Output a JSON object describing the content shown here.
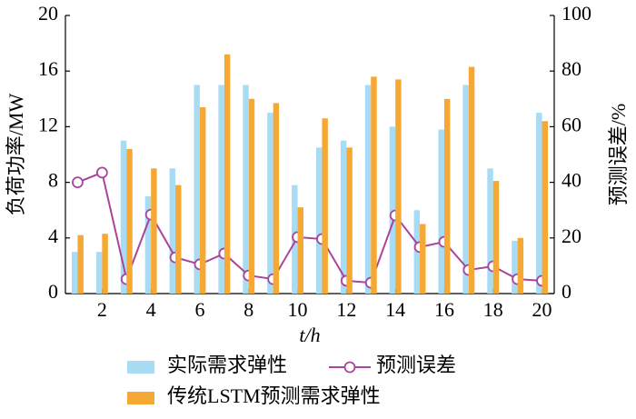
{
  "chart_data": {
    "type": "bar",
    "x": [
      1,
      2,
      3,
      4,
      5,
      6,
      7,
      8,
      9,
      10,
      11,
      12,
      13,
      14,
      15,
      16,
      17,
      18,
      19,
      20
    ],
    "xlim": [
      0.5,
      20.5
    ],
    "xticks": [
      2,
      4,
      6,
      8,
      10,
      12,
      14,
      16,
      18,
      20
    ],
    "ylim": [
      0,
      20
    ],
    "yticks": [
      0,
      4,
      8,
      12,
      16,
      20
    ],
    "y2lim": [
      0,
      100
    ],
    "y2ticks": [
      0,
      20,
      40,
      60,
      80,
      100
    ],
    "xlabel": "t/h",
    "ylabel": "负荷功率/MW",
    "y2label": "预测误差/%",
    "grid": false,
    "legend": "bottom",
    "series": [
      {
        "name": "实际需求弹性",
        "type": "bar",
        "color": "#a8dcf5",
        "values": [
          3,
          3,
          11,
          7,
          9,
          15,
          15,
          15,
          13,
          7.8,
          10.5,
          11,
          15,
          12,
          6,
          11.8,
          15,
          9,
          3.8,
          13
        ]
      },
      {
        "name": "预测误差",
        "type": "line",
        "axis": "y2",
        "color": "#a8449c",
        "values": [
          40,
          43.5,
          5.2,
          28.4,
          13,
          10.5,
          14.4,
          6.5,
          5.2,
          20.3,
          19.6,
          4.6,
          3.9,
          28.1,
          16.7,
          18.6,
          8.5,
          9.8,
          5.2,
          4.6
        ]
      },
      {
        "name": "传统LSTM预测需求弹性",
        "type": "bar",
        "color": "#f5a833",
        "values": [
          4.2,
          4.3,
          10.4,
          9,
          7.8,
          13.4,
          17.2,
          14,
          13.7,
          6.2,
          12.6,
          10.5,
          15.6,
          15.4,
          5,
          14,
          16.3,
          8.1,
          4,
          12.4
        ]
      }
    ]
  }
}
